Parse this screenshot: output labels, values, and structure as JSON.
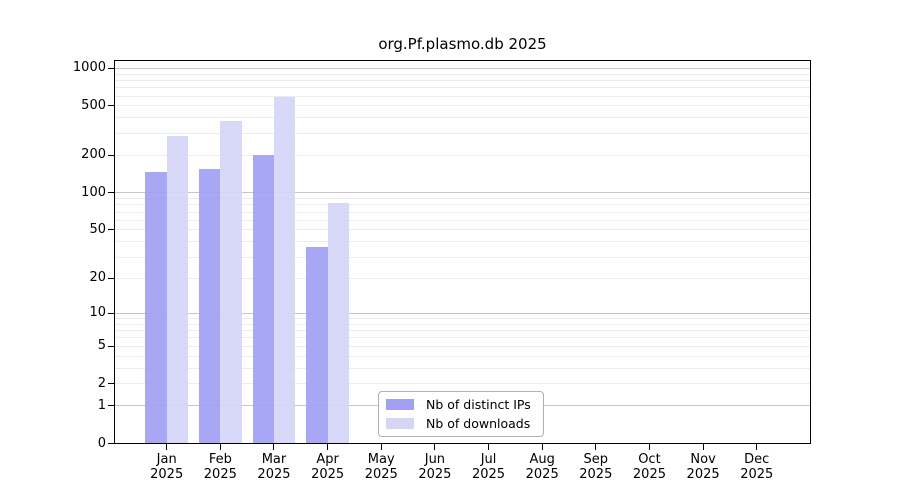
{
  "chart_data": {
    "type": "bar",
    "title": "org.Pf.plasmo.db 2025",
    "categories": [
      "Jan 2025",
      "Feb 2025",
      "Mar 2025",
      "Apr 2025",
      "May 2025",
      "Jun 2025",
      "Jul 2025",
      "Aug 2025",
      "Sep 2025",
      "Oct 2025",
      "Nov 2025",
      "Dec 2025"
    ],
    "series": [
      {
        "name": "Nb of distinct IPs",
        "color": "#a0a0f4",
        "values": [
          147,
          156,
          200,
          36,
          0,
          0,
          0,
          0,
          0,
          0,
          0,
          0
        ]
      },
      {
        "name": "Nb of downloads",
        "color": "#d5d5f7",
        "values": [
          287,
          378,
          589,
          83,
          0,
          0,
          0,
          0,
          0,
          0,
          0,
          0
        ]
      }
    ],
    "xlabel": "",
    "ylabel": "",
    "y_axis": {
      "scale": "log10(1+value), 0 pinned to baseline",
      "ticks": [
        0,
        1,
        2,
        5,
        10,
        20,
        50,
        100,
        200,
        500,
        1000
      ],
      "range": [
        0,
        1180
      ]
    },
    "grid": {
      "on": true,
      "major_lines": [
        1,
        10,
        100,
        1000
      ],
      "minor_lines": "2-9 in each decade"
    },
    "legend": {
      "position": "inside bottom-center",
      "entries": [
        "Nb of distinct IPs",
        "Nb of downloads"
      ]
    },
    "style": {
      "grid_major_color": "#c6c6c6",
      "grid_minor_color": "#ececec",
      "axis_color": "#000000",
      "background_color": "#ffffff"
    }
  }
}
